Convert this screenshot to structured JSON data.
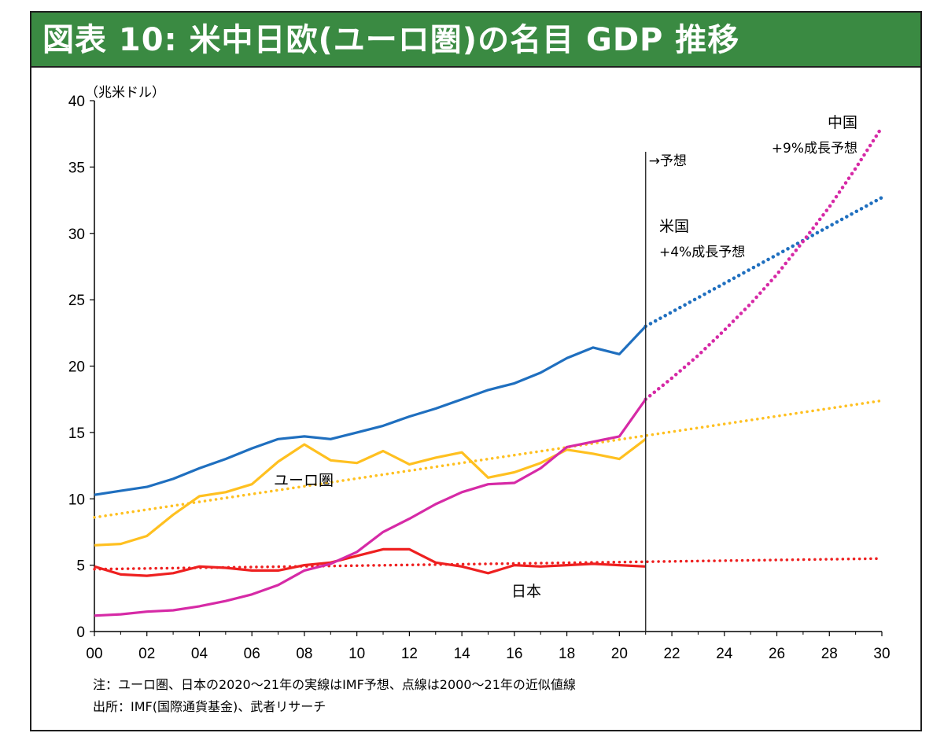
{
  "title": "図表 10: 米中日欧(ユーロ圏)の名目 GDP 推移",
  "chart_data": {
    "type": "line",
    "unit_label": "（兆米ドル）",
    "x_tick_labels": [
      "00",
      "02",
      "04",
      "06",
      "08",
      "10",
      "12",
      "14",
      "16",
      "18",
      "20",
      "22",
      "24",
      "26",
      "28",
      "30"
    ],
    "y_tick_labels": [
      "0",
      "5",
      "10",
      "15",
      "20",
      "25",
      "30",
      "35",
      "40"
    ],
    "xlim": [
      2000,
      2030
    ],
    "ylim": [
      0,
      40
    ],
    "forecast_start": 2021,
    "forecast_label": "→予想",
    "colors": {
      "us": "#1f6fbf",
      "china": "#d62aa6",
      "euro": "#ffc020",
      "japan": "#ee2020",
      "divider": "#333333"
    },
    "series": [
      {
        "key": "us",
        "values": [
          [
            2000,
            10.3
          ],
          [
            2001,
            10.6
          ],
          [
            2002,
            10.9
          ],
          [
            2003,
            11.5
          ],
          [
            2004,
            12.3
          ],
          [
            2005,
            13.0
          ],
          [
            2006,
            13.8
          ],
          [
            2007,
            14.5
          ],
          [
            2008,
            14.7
          ],
          [
            2009,
            14.5
          ],
          [
            2010,
            15.0
          ],
          [
            2011,
            15.5
          ],
          [
            2012,
            16.2
          ],
          [
            2013,
            16.8
          ],
          [
            2014,
            17.5
          ],
          [
            2015,
            18.2
          ],
          [
            2016,
            18.7
          ],
          [
            2017,
            19.5
          ],
          [
            2018,
            20.6
          ],
          [
            2019,
            21.4
          ],
          [
            2020,
            20.9
          ],
          [
            2021,
            23.0
          ]
        ],
        "forecast": [
          [
            2021,
            23.0
          ],
          [
            2030,
            32.7
          ]
        ]
      },
      {
        "key": "china",
        "values": [
          [
            2000,
            1.2
          ],
          [
            2001,
            1.3
          ],
          [
            2002,
            1.5
          ],
          [
            2003,
            1.6
          ],
          [
            2004,
            1.9
          ],
          [
            2005,
            2.3
          ],
          [
            2006,
            2.8
          ],
          [
            2007,
            3.5
          ],
          [
            2008,
            4.6
          ],
          [
            2009,
            5.1
          ],
          [
            2010,
            6.0
          ],
          [
            2011,
            7.5
          ],
          [
            2012,
            8.5
          ],
          [
            2013,
            9.6
          ],
          [
            2014,
            10.5
          ],
          [
            2015,
            11.1
          ],
          [
            2016,
            11.2
          ],
          [
            2017,
            12.3
          ],
          [
            2018,
            13.9
          ],
          [
            2019,
            14.3
          ],
          [
            2020,
            14.7
          ],
          [
            2021,
            17.5
          ]
        ],
        "forecast": [
          [
            2021,
            17.5
          ],
          [
            2022,
            19.1
          ],
          [
            2023,
            20.8
          ],
          [
            2024,
            22.7
          ],
          [
            2025,
            24.7
          ],
          [
            2026,
            26.9
          ],
          [
            2027,
            29.4
          ],
          [
            2028,
            32.0
          ],
          [
            2029,
            34.9
          ],
          [
            2030,
            38.0
          ]
        ]
      },
      {
        "key": "euro",
        "values": [
          [
            2000,
            6.5
          ],
          [
            2001,
            6.6
          ],
          [
            2002,
            7.2
          ],
          [
            2003,
            8.8
          ],
          [
            2004,
            10.2
          ],
          [
            2005,
            10.5
          ],
          [
            2006,
            11.1
          ],
          [
            2007,
            12.8
          ],
          [
            2008,
            14.1
          ],
          [
            2009,
            12.9
          ],
          [
            2010,
            12.7
          ],
          [
            2011,
            13.6
          ],
          [
            2012,
            12.6
          ],
          [
            2013,
            13.1
          ],
          [
            2014,
            13.5
          ],
          [
            2015,
            11.6
          ],
          [
            2016,
            12.0
          ],
          [
            2017,
            12.7
          ],
          [
            2018,
            13.7
          ],
          [
            2019,
            13.4
          ],
          [
            2020,
            13.0
          ],
          [
            2021,
            14.5
          ]
        ],
        "trend": [
          [
            2000,
            8.6
          ],
          [
            2030,
            17.4
          ]
        ]
      },
      {
        "key": "japan",
        "values": [
          [
            2000,
            4.9
          ],
          [
            2001,
            4.3
          ],
          [
            2002,
            4.2
          ],
          [
            2003,
            4.4
          ],
          [
            2004,
            4.9
          ],
          [
            2005,
            4.8
          ],
          [
            2006,
            4.6
          ],
          [
            2007,
            4.6
          ],
          [
            2008,
            5.0
          ],
          [
            2009,
            5.2
          ],
          [
            2010,
            5.7
          ],
          [
            2011,
            6.2
          ],
          [
            2012,
            6.2
          ],
          [
            2013,
            5.2
          ],
          [
            2014,
            4.9
          ],
          [
            2015,
            4.4
          ],
          [
            2016,
            5.0
          ],
          [
            2017,
            4.9
          ],
          [
            2018,
            5.0
          ],
          [
            2019,
            5.1
          ],
          [
            2020,
            5.0
          ],
          [
            2021,
            4.9
          ]
        ],
        "trend": [
          [
            2000,
            4.7
          ],
          [
            2030,
            5.5
          ]
        ]
      }
    ],
    "annotations": {
      "china_name": "中国",
      "china_growth": "+9%成長予想",
      "us_name": "米国",
      "us_growth": "+4%成長予想",
      "euro_name": "ユーロ圏",
      "japan_name": "日本"
    }
  },
  "notes": {
    "line1": "注：ユーロ圏、日本の2020～21年の実線はIMF予想、点線は2000～21年の近似値線",
    "line2": "出所：IMF(国際通貨基金)、武者リサーチ"
  }
}
